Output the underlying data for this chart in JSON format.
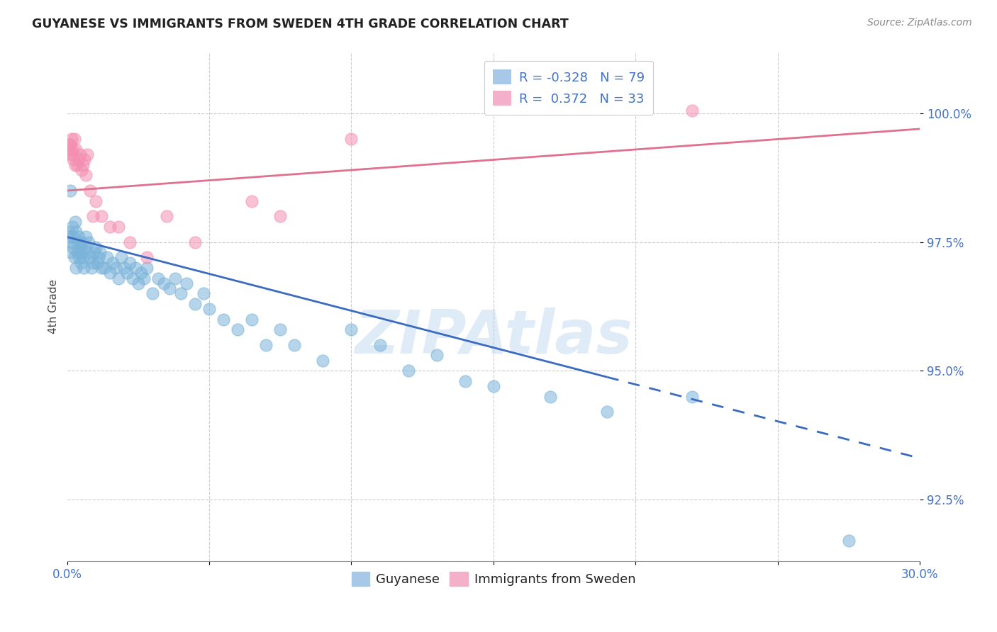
{
  "title": "GUYANESE VS IMMIGRANTS FROM SWEDEN 4TH GRADE CORRELATION CHART",
  "source": "Source: ZipAtlas.com",
  "ylabel": "4th Grade",
  "yticks": [
    92.5,
    95.0,
    97.5,
    100.0
  ],
  "xmin": 0.0,
  "xmax": 30.0,
  "ymin": 91.3,
  "ymax": 101.2,
  "watermark": "ZIPAtlas",
  "guyanese_color": "#7ab3d9",
  "sweden_color": "#f48fb1",
  "trend_blue": "#3a6bbf",
  "trend_pink": "#e07090",
  "blue_line_x0": 0.0,
  "blue_line_y0": 97.6,
  "blue_line_x1": 30.0,
  "blue_line_y1": 93.3,
  "blue_solid_end": 19.0,
  "pink_line_x0": 0.0,
  "pink_line_y0": 98.5,
  "pink_line_x1": 30.0,
  "pink_line_y1": 99.7,
  "guyanese_x": [
    0.05,
    0.08,
    0.1,
    0.12,
    0.15,
    0.18,
    0.2,
    0.22,
    0.25,
    0.28,
    0.3,
    0.32,
    0.35,
    0.38,
    0.4,
    0.42,
    0.45,
    0.48,
    0.5,
    0.52,
    0.55,
    0.58,
    0.6,
    0.65,
    0.7,
    0.75,
    0.8,
    0.85,
    0.9,
    0.95,
    1.0,
    1.05,
    1.1,
    1.15,
    1.2,
    1.3,
    1.4,
    1.5,
    1.6,
    1.7,
    1.8,
    1.9,
    2.0,
    2.1,
    2.2,
    2.3,
    2.4,
    2.5,
    2.6,
    2.7,
    2.8,
    3.0,
    3.2,
    3.4,
    3.6,
    3.8,
    4.0,
    4.2,
    4.5,
    4.8,
    5.0,
    5.5,
    6.0,
    6.5,
    7.0,
    7.5,
    8.0,
    9.0,
    10.0,
    11.0,
    12.0,
    13.0,
    14.0,
    15.0,
    17.0,
    19.0,
    22.0,
    27.5
  ],
  "guyanese_y": [
    97.7,
    97.6,
    98.5,
    97.3,
    97.5,
    97.8,
    97.6,
    97.4,
    97.2,
    97.9,
    97.0,
    97.7,
    97.3,
    97.5,
    97.2,
    97.6,
    97.4,
    97.1,
    97.3,
    97.5,
    97.2,
    97.0,
    97.4,
    97.6,
    97.3,
    97.5,
    97.2,
    97.0,
    97.1,
    97.3,
    97.4,
    97.1,
    97.2,
    97.3,
    97.0,
    97.0,
    97.2,
    96.9,
    97.1,
    97.0,
    96.8,
    97.2,
    97.0,
    96.9,
    97.1,
    96.8,
    97.0,
    96.7,
    96.9,
    96.8,
    97.0,
    96.5,
    96.8,
    96.7,
    96.6,
    96.8,
    96.5,
    96.7,
    96.3,
    96.5,
    96.2,
    96.0,
    95.8,
    96.0,
    95.5,
    95.8,
    95.5,
    95.2,
    95.8,
    95.5,
    95.0,
    95.3,
    94.8,
    94.7,
    94.5,
    94.2,
    94.5,
    91.7
  ],
  "sweden_x": [
    0.05,
    0.08,
    0.1,
    0.12,
    0.15,
    0.18,
    0.2,
    0.22,
    0.25,
    0.28,
    0.3,
    0.35,
    0.4,
    0.45,
    0.5,
    0.55,
    0.6,
    0.65,
    0.7,
    0.8,
    0.9,
    1.0,
    1.2,
    1.5,
    1.8,
    2.2,
    2.8,
    3.5,
    4.5,
    6.5,
    7.5,
    10.0,
    22.0
  ],
  "sweden_y": [
    99.4,
    99.3,
    99.2,
    99.4,
    99.5,
    99.3,
    99.1,
    99.2,
    99.5,
    99.0,
    99.3,
    99.0,
    99.1,
    99.2,
    98.9,
    99.0,
    99.1,
    98.8,
    99.2,
    98.5,
    98.0,
    98.3,
    98.0,
    97.8,
    97.8,
    97.5,
    97.2,
    98.0,
    97.5,
    98.3,
    98.0,
    99.5,
    100.05
  ]
}
